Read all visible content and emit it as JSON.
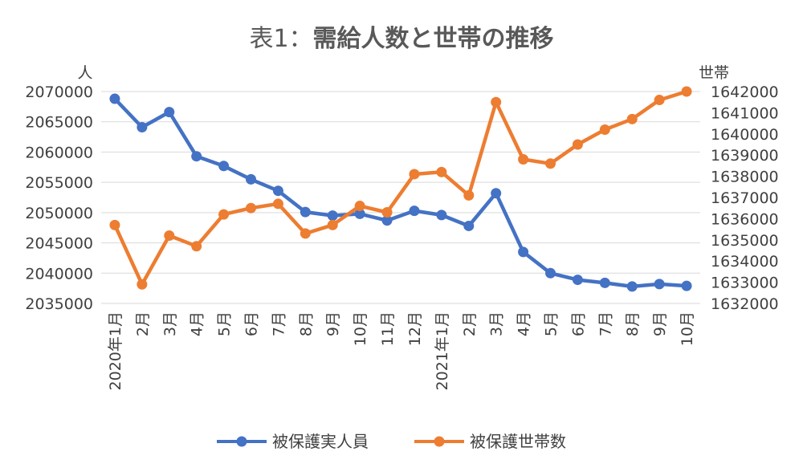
{
  "chart_data": {
    "type": "line",
    "title_prefix": "表1：",
    "title_main": "需給人数と世帯の推移",
    "left_axis_label": "人",
    "right_axis_label": "世帯",
    "categories": [
      "2020年1月",
      "2月",
      "3月",
      "4月",
      "5月",
      "6月",
      "7月",
      "8月",
      "9月",
      "10月",
      "11月",
      "12月",
      "2021年1月",
      "2月",
      "3月",
      "4月",
      "5月",
      "6月",
      "7月",
      "8月",
      "9月",
      "10月"
    ],
    "y_left": {
      "min": 2035000,
      "max": 2070000,
      "step": 5000,
      "tick_labels": [
        "2035000",
        "2040000",
        "2045000",
        "2050000",
        "2055000",
        "2060000",
        "2065000",
        "2070000"
      ]
    },
    "y_right": {
      "min": 1632000,
      "max": 1642000,
      "step": 1000,
      "tick_labels": [
        "1632000",
        "1633000",
        "1634000",
        "1635000",
        "1636000",
        "1637000",
        "1638000",
        "1639000",
        "1640000",
        "1641000",
        "1642000"
      ]
    },
    "grid": true,
    "legend_position": "bottom",
    "series": [
      {
        "name": "被保護実人員",
        "axis": "left",
        "color": "#4472C4",
        "values": [
          2068800,
          2064100,
          2066600,
          2059300,
          2057700,
          2055500,
          2053600,
          2050100,
          2049500,
          2049800,
          2048700,
          2050300,
          2049600,
          2047800,
          2053200,
          2043500,
          2040000,
          2038900,
          2038400,
          2037800,
          2038200,
          2037900
        ]
      },
      {
        "name": "被保護世帯数",
        "axis": "right",
        "color": "#ED7D31",
        "values": [
          1635700,
          1632900,
          1635200,
          1634700,
          1636200,
          1636500,
          1636700,
          1635300,
          1635700,
          1636600,
          1636300,
          1638100,
          1638200,
          1637100,
          1641500,
          1638800,
          1638600,
          1639500,
          1640200,
          1640700,
          1641600,
          1642000
        ]
      }
    ]
  }
}
